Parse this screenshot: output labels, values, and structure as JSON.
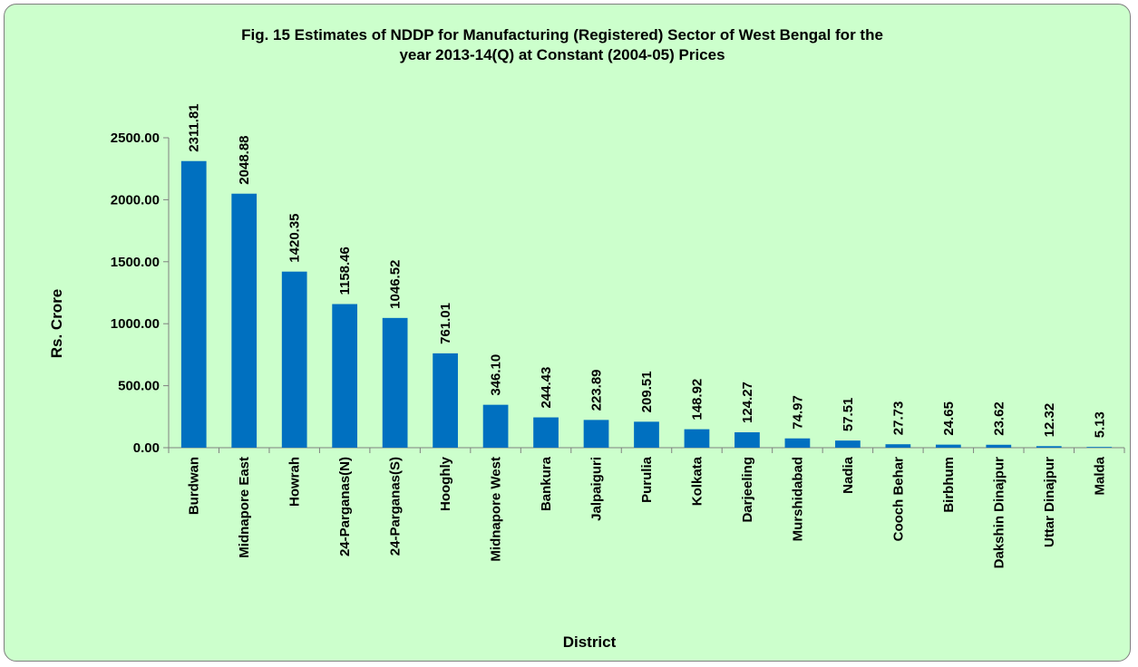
{
  "chart_data": {
    "type": "bar",
    "title_lines": [
      "Fig. 15 Estimates of  NDDP for Manufacturing (Registered) Sector of West Bengal for the",
      "year 2013-14(Q) at  Constant (2004-05) Prices"
    ],
    "xlabel": "District",
    "ylabel": "Rs. Crore",
    "ylim": [
      0,
      2500
    ],
    "yticks": [
      "0.00",
      "500.00",
      "1000.00",
      "1500.00",
      "2000.00",
      "2500.00"
    ],
    "grid": false,
    "legend": "none",
    "bar_color": "#0070c0",
    "categories": [
      "Burdwan",
      "Midnapore East",
      "Howrah",
      "24-Parganas(N)",
      "24-Parganas(S)",
      "Hooghly",
      "Midnapore West",
      "Bankura",
      "Jalpaiguri",
      "Purulia",
      "Kolkata",
      "Darjeeling",
      "Murshidabad",
      "Nadia",
      "Cooch Behar",
      "Birbhum",
      "Dakshin Dinajpur",
      "Uttar Dinajpur",
      "Malda"
    ],
    "values": [
      2311.81,
      2048.88,
      1420.35,
      1158.46,
      1046.52,
      761.01,
      346.1,
      244.43,
      223.89,
      209.51,
      148.92,
      124.27,
      74.97,
      57.51,
      27.73,
      24.65,
      23.62,
      12.32,
      5.13
    ],
    "value_labels": [
      "2311.81",
      "2048.88",
      "1420.35",
      "1158.46",
      "1046.52",
      "761.01",
      "346.10",
      "244.43",
      "223.89",
      "209.51",
      "148.92",
      "124.27",
      "74.97",
      "57.51",
      "27.73",
      "24.65",
      "23.62",
      "12.32",
      "5.13"
    ]
  }
}
